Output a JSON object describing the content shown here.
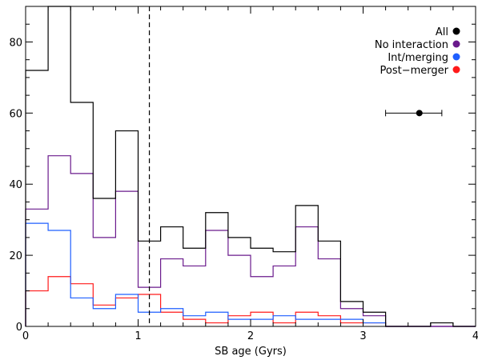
{
  "chart_data": {
    "type": "histogram",
    "xlabel": "SB age (Gyrs)",
    "ylabel": "",
    "xlim": [
      0,
      4
    ],
    "ylim": [
      0,
      90
    ],
    "x_ticks": [
      "0",
      "1",
      "2",
      "3",
      "4"
    ],
    "y_ticks": [
      "0",
      "20",
      "40",
      "60",
      "80"
    ],
    "bin_edges": [
      0.0,
      0.2,
      0.4,
      0.6,
      0.8,
      1.0,
      1.2,
      1.4,
      1.6,
      1.8,
      2.0,
      2.2,
      2.4,
      2.6,
      2.8,
      3.0,
      3.2,
      3.4,
      3.6,
      3.8,
      4.0
    ],
    "series": [
      {
        "name": "All",
        "color": "#000000",
        "values": [
          72,
          90,
          63,
          36,
          55,
          24,
          28,
          22,
          32,
          25,
          22,
          21,
          34,
          24,
          7,
          4,
          0,
          0,
          1,
          0
        ]
      },
      {
        "name": "No interaction",
        "color": "#6a1a8c",
        "values": [
          33,
          48,
          43,
          25,
          38,
          11,
          19,
          17,
          27,
          20,
          14,
          17,
          28,
          19,
          5,
          3,
          0,
          0,
          0,
          0
        ]
      },
      {
        "name": "Int/merging",
        "color": "#1f5fff",
        "values": [
          29,
          27,
          8,
          5,
          9,
          4,
          5,
          3,
          4,
          2,
          2,
          3,
          2,
          2,
          2,
          1,
          0,
          0,
          0,
          0
        ]
      },
      {
        "name": "Post−merger",
        "color": "#ff1a1a",
        "values": [
          10,
          14,
          12,
          6,
          8,
          9,
          4,
          2,
          1,
          3,
          4,
          1,
          4,
          3,
          1,
          1,
          0,
          0,
          0,
          0
        ]
      }
    ],
    "vline": {
      "x": 1.1,
      "style": "dashed"
    },
    "error_point": {
      "x": 3.5,
      "y": 60,
      "xerr_low": 0.3,
      "xerr_high": 0.2
    },
    "legend_position": "top-right"
  }
}
